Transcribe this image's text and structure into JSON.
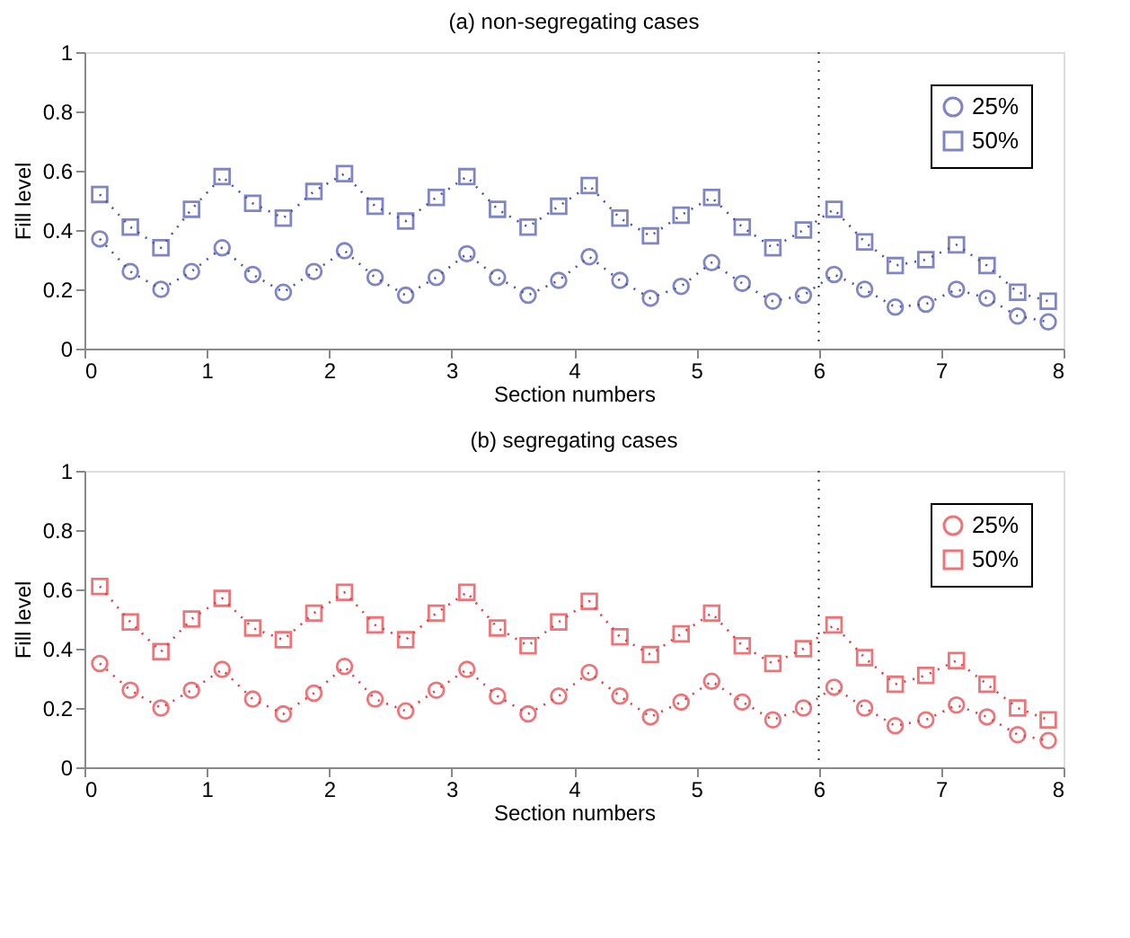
{
  "chart_data": [
    {
      "type": "line",
      "title": "(a) non-segregating cases",
      "xlabel": "Section numbers",
      "ylabel": "Fill level",
      "x": [
        0.125,
        0.375,
        0.625,
        0.875,
        1.125,
        1.375,
        1.625,
        1.875,
        2.125,
        2.375,
        2.625,
        2.875,
        3.125,
        3.375,
        3.625,
        3.875,
        4.125,
        4.375,
        4.625,
        4.875,
        5.125,
        5.375,
        5.625,
        5.875,
        6.125,
        6.375,
        6.625,
        6.875,
        7.125,
        7.375,
        7.625,
        7.875
      ],
      "xlim": [
        0,
        8
      ],
      "xticks": [
        0,
        1,
        2,
        3,
        4,
        5,
        6,
        7,
        8
      ],
      "ylim": [
        0,
        1
      ],
      "yticks": [
        0,
        0.2,
        0.4,
        0.6,
        0.8,
        1
      ],
      "grid": false,
      "legend": "top right",
      "line_style": "dotted",
      "series": [
        {
          "name": "25%",
          "color": "#4a52b0",
          "marker": "circle",
          "values": [
            0.37,
            0.26,
            0.2,
            0.26,
            0.34,
            0.25,
            0.19,
            0.26,
            0.33,
            0.24,
            0.18,
            0.24,
            0.32,
            0.24,
            0.18,
            0.23,
            0.31,
            0.23,
            0.17,
            0.21,
            0.29,
            0.22,
            0.16,
            0.18,
            0.25,
            0.2,
            0.14,
            0.15,
            0.2,
            0.17,
            0.11,
            0.09
          ]
        },
        {
          "name": "50%",
          "color": "#4a52b0",
          "marker": "square",
          "values": [
            0.52,
            0.41,
            0.34,
            0.47,
            0.58,
            0.49,
            0.44,
            0.53,
            0.59,
            0.48,
            0.43,
            0.51,
            0.58,
            0.47,
            0.41,
            0.48,
            0.55,
            0.44,
            0.38,
            0.45,
            0.51,
            0.41,
            0.34,
            0.4,
            0.47,
            0.36,
            0.28,
            0.3,
            0.35,
            0.28,
            0.19,
            0.16
          ]
        }
      ],
      "ref_lines": [
        {
          "axis": "x",
          "value": 6,
          "color": "#333333",
          "line_style": "dotted"
        }
      ]
    },
    {
      "type": "line",
      "title": "(b) segregating cases",
      "xlabel": "Section numbers",
      "ylabel": "Fill level",
      "x": [
        0.125,
        0.375,
        0.625,
        0.875,
        1.125,
        1.375,
        1.625,
        1.875,
        2.125,
        2.375,
        2.625,
        2.875,
        3.125,
        3.375,
        3.625,
        3.875,
        4.125,
        4.375,
        4.625,
        4.875,
        5.125,
        5.375,
        5.625,
        5.875,
        6.125,
        6.375,
        6.625,
        6.875,
        7.125,
        7.375,
        7.625,
        7.875
      ],
      "xlim": [
        0,
        8
      ],
      "xticks": [
        0,
        1,
        2,
        3,
        4,
        5,
        6,
        7,
        8
      ],
      "ylim": [
        0,
        1
      ],
      "yticks": [
        0,
        0.2,
        0.4,
        0.6,
        0.8,
        1
      ],
      "grid": false,
      "legend": "top right",
      "line_style": "dotted",
      "series": [
        {
          "name": "25%",
          "color": "#e83a40",
          "marker": "circle",
          "values": [
            0.35,
            0.26,
            0.2,
            0.26,
            0.33,
            0.23,
            0.18,
            0.25,
            0.34,
            0.23,
            0.19,
            0.26,
            0.33,
            0.24,
            0.18,
            0.24,
            0.32,
            0.24,
            0.17,
            0.22,
            0.29,
            0.22,
            0.16,
            0.2,
            0.27,
            0.2,
            0.14,
            0.16,
            0.21,
            0.17,
            0.11,
            0.09
          ]
        },
        {
          "name": "50%",
          "color": "#e83a40",
          "marker": "square",
          "values": [
            0.61,
            0.49,
            0.39,
            0.5,
            0.57,
            0.47,
            0.43,
            0.52,
            0.59,
            0.48,
            0.43,
            0.52,
            0.59,
            0.47,
            0.41,
            0.49,
            0.56,
            0.44,
            0.38,
            0.45,
            0.52,
            0.41,
            0.35,
            0.4,
            0.48,
            0.37,
            0.28,
            0.31,
            0.36,
            0.28,
            0.2,
            0.16
          ]
        }
      ],
      "ref_lines": [
        {
          "axis": "x",
          "value": 6,
          "color": "#333333",
          "line_style": "dotted"
        }
      ]
    }
  ]
}
